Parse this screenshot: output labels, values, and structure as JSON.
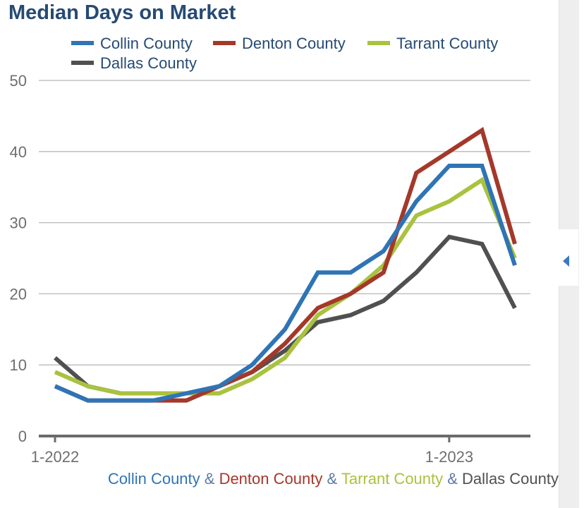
{
  "title": "Median Days on Market",
  "footer": {
    "parts": [
      {
        "text": "Collin County",
        "color": "#2f74b5"
      },
      {
        "text": " & ",
        "color": "#5b7aa3"
      },
      {
        "text": "Denton County",
        "color": "#a4382a"
      },
      {
        "text": " & ",
        "color": "#5b7aa3"
      },
      {
        "text": "Tarrant County",
        "color": "#a9c23f"
      },
      {
        "text": " & ",
        "color": "#5b7aa3"
      },
      {
        "text": "Dallas County",
        "color": "#505050"
      }
    ]
  },
  "chart_data": {
    "type": "line",
    "title": "Median Days on Market",
    "x": [
      "1-2022",
      "2-2022",
      "3-2022",
      "4-2022",
      "5-2022",
      "6-2022",
      "7-2022",
      "8-2022",
      "9-2022",
      "10-2022",
      "11-2022",
      "12-2022",
      "1-2023",
      "2-2023",
      "3-2023"
    ],
    "x_tick_labels": [
      "1-2022",
      "1-2023"
    ],
    "y_ticks": [
      "0",
      "10",
      "20",
      "30",
      "40",
      "50"
    ],
    "ylim": [
      0,
      50
    ],
    "grid": true,
    "legend_position": "top",
    "series": [
      {
        "name": "Collin County",
        "color": "#2f74b5",
        "values": [
          7,
          5,
          5,
          5,
          6,
          7,
          10,
          15,
          23,
          23,
          26,
          33,
          38,
          38,
          24
        ]
      },
      {
        "name": "Denton County",
        "color": "#a4382a",
        "values": [
          7,
          5,
          5,
          5,
          5,
          7,
          9,
          13,
          18,
          20,
          23,
          37,
          40,
          43,
          27
        ]
      },
      {
        "name": "Tarrant County",
        "color": "#a9c23f",
        "values": [
          9,
          7,
          6,
          6,
          6,
          6,
          8,
          11,
          17,
          20,
          24,
          31,
          33,
          36,
          25
        ]
      },
      {
        "name": "Dallas County",
        "color": "#505050",
        "values": [
          11,
          7,
          6,
          6,
          6,
          7,
          9,
          12,
          16,
          17,
          19,
          23,
          28,
          27,
          18
        ]
      }
    ]
  }
}
